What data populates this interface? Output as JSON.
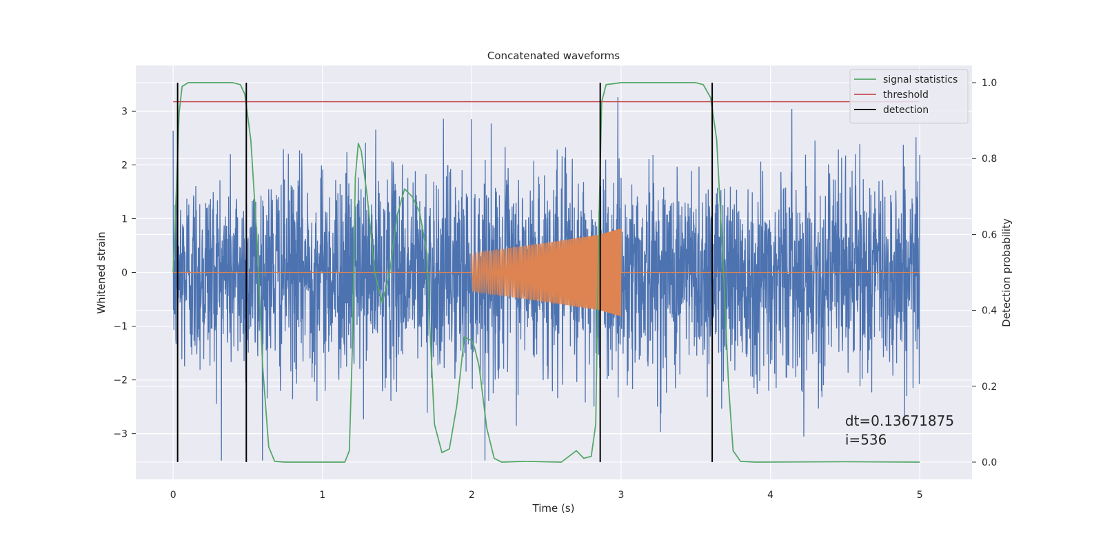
{
  "chart_data": {
    "type": "line",
    "title": "Concatenated waveforms",
    "xlabel": "Time (s)",
    "ylabel": "Whitened strain",
    "y2label": "Detection probability",
    "xlim": [
      -0.25,
      5.35
    ],
    "ylim": [
      -3.85,
      3.85
    ],
    "y2lim": [
      -0.0455,
      1.0455
    ],
    "xticks": [
      0,
      1,
      2,
      3,
      4,
      5
    ],
    "yticks": [
      -3,
      -2,
      -1,
      0,
      1,
      2,
      3
    ],
    "y2ticks": [
      0.0,
      0.2,
      0.4,
      0.6,
      0.8,
      1.0
    ],
    "y2tick_labels": [
      "0.0",
      "0.2",
      "0.4",
      "0.6",
      "0.8",
      "1.0"
    ],
    "grid": true,
    "legend_placement": "top-right",
    "legend": [
      "signal statistics",
      "threshold",
      "detection"
    ],
    "colors": {
      "strain": "#4c72b0",
      "injection": "#dd8452",
      "signal_statistics": "#55a868",
      "threshold": "#c44e52",
      "detection": "#000000",
      "plot_bg": "#eaeaf2",
      "grid": "#ffffff"
    },
    "series": [
      {
        "name": "",
        "axis": "left",
        "kind": "noise",
        "x_range": [
          0,
          5
        ],
        "amplitude_std": 0.95,
        "peak_range": [
          -3.5,
          3.5
        ]
      },
      {
        "name": "",
        "axis": "left",
        "kind": "chirp",
        "zero_outside": [
          0,
          5
        ],
        "chirp_range": [
          2.0,
          3.0
        ],
        "envelope": [
          [
            2.0,
            0.35
          ],
          [
            2.5,
            0.55
          ],
          [
            2.85,
            0.7
          ],
          [
            3.0,
            0.82
          ]
        ]
      },
      {
        "name": "signal statistics",
        "axis": "right",
        "points": [
          [
            0.0,
            0.5
          ],
          [
            0.02,
            0.7
          ],
          [
            0.04,
            0.92
          ],
          [
            0.06,
            0.99
          ],
          [
            0.1,
            1.0
          ],
          [
            0.4,
            1.0
          ],
          [
            0.45,
            0.995
          ],
          [
            0.48,
            0.97
          ],
          [
            0.52,
            0.85
          ],
          [
            0.56,
            0.6
          ],
          [
            0.6,
            0.25
          ],
          [
            0.64,
            0.04
          ],
          [
            0.68,
            0.002
          ],
          [
            0.75,
            0.0
          ],
          [
            1.15,
            0.0
          ],
          [
            1.18,
            0.03
          ],
          [
            1.2,
            0.3
          ],
          [
            1.22,
            0.75
          ],
          [
            1.24,
            0.84
          ],
          [
            1.26,
            0.82
          ],
          [
            1.3,
            0.7
          ],
          [
            1.35,
            0.5
          ],
          [
            1.4,
            0.42
          ],
          [
            1.45,
            0.5
          ],
          [
            1.5,
            0.65
          ],
          [
            1.55,
            0.72
          ],
          [
            1.6,
            0.7
          ],
          [
            1.65,
            0.66
          ],
          [
            1.7,
            0.55
          ],
          [
            1.72,
            0.35
          ],
          [
            1.75,
            0.1
          ],
          [
            1.8,
            0.025
          ],
          [
            1.85,
            0.035
          ],
          [
            1.9,
            0.15
          ],
          [
            1.95,
            0.33
          ],
          [
            2.0,
            0.32
          ],
          [
            2.02,
            0.3
          ],
          [
            2.05,
            0.25
          ],
          [
            2.1,
            0.09
          ],
          [
            2.15,
            0.01
          ],
          [
            2.2,
            0.0
          ],
          [
            2.35,
            0.002
          ],
          [
            2.6,
            0.0
          ],
          [
            2.7,
            0.03
          ],
          [
            2.75,
            0.01
          ],
          [
            2.8,
            0.015
          ],
          [
            2.83,
            0.1
          ],
          [
            2.85,
            0.6
          ],
          [
            2.87,
            0.95
          ],
          [
            2.9,
            0.995
          ],
          [
            3.0,
            1.0
          ],
          [
            3.5,
            1.0
          ],
          [
            3.55,
            0.995
          ],
          [
            3.6,
            0.96
          ],
          [
            3.64,
            0.85
          ],
          [
            3.68,
            0.55
          ],
          [
            3.72,
            0.2
          ],
          [
            3.75,
            0.03
          ],
          [
            3.8,
            0.002
          ],
          [
            3.9,
            0.0
          ],
          [
            4.5,
            0.001
          ],
          [
            5.0,
            0.0
          ]
        ]
      },
      {
        "name": "threshold",
        "axis": "right",
        "points": [
          [
            0.0,
            0.95
          ],
          [
            5.0,
            0.95
          ]
        ]
      },
      {
        "name": "detection",
        "axis": "right",
        "kind": "vlines",
        "x": [
          0.03,
          0.49,
          2.86,
          3.61
        ],
        "y_range": [
          0.0,
          1.0
        ]
      }
    ],
    "annotations": [
      {
        "text": "dt=0.13671875",
        "x": 4.5,
        "y": -2.85
      },
      {
        "text": " i=536",
        "x": 4.5,
        "y": -3.2
      }
    ]
  }
}
